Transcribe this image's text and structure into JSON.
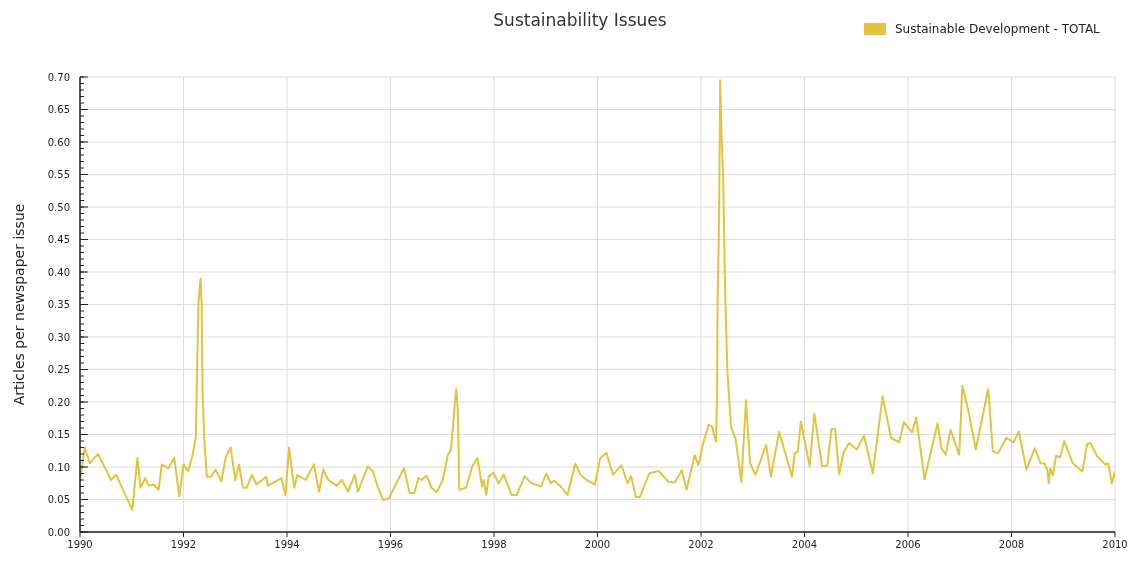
{
  "chart_data": {
    "type": "line",
    "title": "Sustainability Issues",
    "ylabel": "Articles per newspaper issue",
    "legend": "top right",
    "grid": true,
    "marker": "none",
    "line_style": "solid",
    "xlim": [
      1990,
      2010
    ],
    "xticks": [
      1990,
      1992,
      1994,
      1996,
      1998,
      2000,
      2002,
      2004,
      2006,
      2008,
      2010
    ],
    "ylim": [
      0,
      0.7
    ],
    "yticks": [
      {
        "value": 0,
        "label": "0.00"
      },
      {
        "value": 0.05,
        "label": "0.05"
      },
      {
        "value": 0.1,
        "label": "0.10"
      },
      {
        "value": 0.15,
        "label": "0.15"
      },
      {
        "value": 0.2,
        "label": "0.20"
      },
      {
        "value": 0.25,
        "label": "0.25"
      },
      {
        "value": 0.3,
        "label": "0.30"
      },
      {
        "value": 0.35,
        "label": "0.35"
      },
      {
        "value": 0.4,
        "label": "0.40"
      },
      {
        "value": 0.45,
        "label": "0.45"
      },
      {
        "value": 0.5,
        "label": "0.50"
      },
      {
        "value": 0.55,
        "label": "0.55"
      },
      {
        "value": 0.6,
        "label": "0.60"
      },
      {
        "value": 0.65,
        "label": "0.65"
      },
      {
        "value": 0.7,
        "label": "0.70"
      }
    ],
    "series": [
      {
        "name": "Sustainable Development - TOTAL",
        "color": "#e2c440",
        "x": [
          1990.0,
          1990.09,
          1990.19,
          1990.35,
          1990.6,
          1990.7,
          1991.01,
          1991.11,
          1991.17,
          1991.26,
          1991.33,
          1991.42,
          1991.52,
          1991.58,
          1991.71,
          1991.82,
          1991.92,
          1992.0,
          1992.09,
          1992.18,
          1992.24,
          1992.26,
          1992.29,
          1992.33,
          1992.35,
          1992.37,
          1992.4,
          1992.45,
          1992.53,
          1992.62,
          1992.73,
          1992.82,
          1992.91,
          1993.0,
          1993.07,
          1993.15,
          1993.22,
          1993.32,
          1993.41,
          1993.6,
          1993.63,
          1993.89,
          1993.97,
          1994.04,
          1994.14,
          1994.2,
          1994.36,
          1994.52,
          1994.62,
          1994.7,
          1994.8,
          1994.96,
          1995.06,
          1995.18,
          1995.31,
          1995.37,
          1995.56,
          1995.66,
          1995.75,
          1995.86,
          1995.97,
          1996.26,
          1996.37,
          1996.46,
          1996.54,
          1996.6,
          1996.7,
          1996.79,
          1996.89,
          1997.01,
          1997.11,
          1997.17,
          1997.24,
          1997.27,
          1997.3,
          1997.33,
          1997.46,
          1997.58,
          1997.68,
          1997.77,
          1997.8,
          1997.85,
          1997.9,
          1997.99,
          1998.09,
          1998.19,
          1998.34,
          1998.44,
          1998.59,
          1998.72,
          1998.91,
          1999.01,
          1999.1,
          1999.16,
          1999.29,
          1999.42,
          1999.57,
          1999.67,
          1999.79,
          1999.95,
          2000.05,
          2000.17,
          2000.3,
          2000.46,
          2000.58,
          2000.65,
          2000.74,
          2000.82,
          2001.0,
          2001.18,
          2001.37,
          2001.49,
          2001.63,
          2001.72,
          2001.88,
          2001.95,
          2002.04,
          2002.15,
          2002.21,
          2002.29,
          2002.31,
          2002.32,
          2002.35,
          2002.37,
          2002.4,
          2002.43,
          2002.46,
          2002.51,
          2002.58,
          2002.67,
          2002.78,
          2002.87,
          2002.9,
          2002.95,
          2003.05,
          2003.26,
          2003.35,
          2003.51,
          2003.76,
          2003.81,
          2003.87,
          2003.93,
          2004.1,
          2004.19,
          2004.34,
          2004.44,
          2004.52,
          2004.59,
          2004.67,
          2004.75,
          2004.86,
          2005.01,
          2005.15,
          2005.32,
          2005.51,
          2005.67,
          2005.83,
          2005.92,
          2006.08,
          2006.16,
          2006.32,
          2006.57,
          2006.65,
          2006.73,
          2006.82,
          2006.99,
          2007.05,
          2007.16,
          2007.31,
          2007.55,
          2007.64,
          2007.74,
          2007.9,
          2008.04,
          2008.14,
          2008.29,
          2008.45,
          2008.56,
          2008.64,
          2008.69,
          2008.72,
          2008.75,
          2008.8,
          2008.86,
          2008.94,
          2009.02,
          2009.18,
          2009.37,
          2009.46,
          2009.53,
          2009.65,
          2009.81,
          2009.87,
          2009.94,
          2010.0
        ],
        "values": [
          0.078,
          0.13,
          0.106,
          0.12,
          0.08,
          0.088,
          0.034,
          0.114,
          0.068,
          0.083,
          0.071,
          0.073,
          0.065,
          0.104,
          0.098,
          0.114,
          0.055,
          0.104,
          0.093,
          0.12,
          0.147,
          0.24,
          0.354,
          0.39,
          0.354,
          0.21,
          0.147,
          0.085,
          0.085,
          0.096,
          0.078,
          0.116,
          0.13,
          0.08,
          0.104,
          0.068,
          0.068,
          0.088,
          0.073,
          0.085,
          0.071,
          0.083,
          0.057,
          0.13,
          0.068,
          0.088,
          0.08,
          0.104,
          0.062,
          0.096,
          0.08,
          0.071,
          0.08,
          0.062,
          0.088,
          0.062,
          0.101,
          0.093,
          0.07,
          0.049,
          0.052,
          0.098,
          0.06,
          0.06,
          0.083,
          0.08,
          0.087,
          0.068,
          0.061,
          0.08,
          0.119,
          0.127,
          0.194,
          0.22,
          0.189,
          0.065,
          0.068,
          0.101,
          0.114,
          0.07,
          0.08,
          0.057,
          0.086,
          0.091,
          0.075,
          0.088,
          0.057,
          0.057,
          0.086,
          0.075,
          0.07,
          0.09,
          0.075,
          0.079,
          0.07,
          0.057,
          0.105,
          0.088,
          0.08,
          0.073,
          0.113,
          0.122,
          0.088,
          0.103,
          0.075,
          0.086,
          0.054,
          0.054,
          0.09,
          0.094,
          0.077,
          0.076,
          0.095,
          0.065,
          0.118,
          0.103,
          0.136,
          0.165,
          0.163,
          0.139,
          0.206,
          0.349,
          0.485,
          0.695,
          0.603,
          0.542,
          0.393,
          0.247,
          0.162,
          0.142,
          0.077,
          0.203,
          0.162,
          0.106,
          0.088,
          0.134,
          0.085,
          0.154,
          0.085,
          0.121,
          0.124,
          0.17,
          0.101,
          0.182,
          0.101,
          0.102,
          0.158,
          0.159,
          0.089,
          0.121,
          0.137,
          0.127,
          0.148,
          0.09,
          0.209,
          0.145,
          0.138,
          0.169,
          0.153,
          0.176,
          0.081,
          0.167,
          0.128,
          0.119,
          0.157,
          0.119,
          0.225,
          0.189,
          0.127,
          0.22,
          0.124,
          0.121,
          0.145,
          0.138,
          0.155,
          0.096,
          0.129,
          0.106,
          0.105,
          0.096,
          0.075,
          0.098,
          0.087,
          0.117,
          0.115,
          0.14,
          0.106,
          0.093,
          0.135,
          0.137,
          0.117,
          0.104,
          0.105,
          0.075,
          0.093
        ]
      }
    ]
  }
}
